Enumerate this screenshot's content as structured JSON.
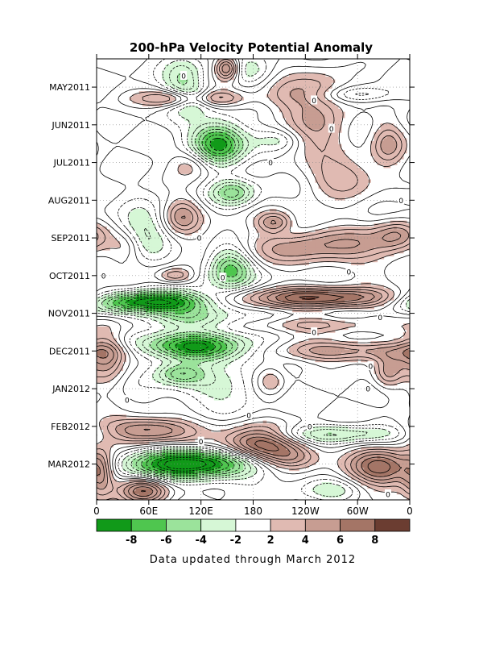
{
  "chart_data": {
    "type": "heatmap",
    "title": "200-hPa Velocity Potential Anomaly",
    "footer": "Data updated through March 2012",
    "xlabel": "",
    "ylabel": "",
    "x_ticks": [
      "0",
      "60E",
      "120E",
      "180",
      "120W",
      "60W",
      "0"
    ],
    "x_tick_lons": [
      0,
      60,
      120,
      180,
      240,
      300,
      360
    ],
    "xlim": [
      0,
      360
    ],
    "y_ticks": [
      "MAY2011",
      "JUN2011",
      "JUL2011",
      "AUG2011",
      "SEP2011",
      "OCT2011",
      "NOV2011",
      "DEC2011",
      "JAN2012",
      "FEB2012",
      "MAR2012"
    ],
    "y_tick_months": [
      1,
      2,
      3,
      4,
      5,
      6,
      7,
      8,
      9,
      10,
      11
    ],
    "ylim_months": [
      0.25,
      11.95
    ],
    "y_direction": "time increases downward",
    "grid": true,
    "contour_interval": 1,
    "zero_contour_label": "0",
    "colorbar": {
      "placement": "bottom",
      "bounds": [
        -10,
        -8,
        -6,
        -4,
        -2,
        2,
        4,
        6,
        8,
        10
      ],
      "tick_labels": [
        "-8",
        "-6",
        "-4",
        "-2",
        "2",
        "4",
        "6",
        "8"
      ],
      "tick_values": [
        -8,
        -6,
        -4,
        -2,
        2,
        4,
        6,
        8
      ],
      "colors": [
        "#119a19",
        "#4fc64f",
        "#9be39b",
        "#d6f7d6",
        "#ffffff",
        "#e0bab2",
        "#c79d92",
        "#a47566",
        "#6b3d31"
      ]
    },
    "features": [
      {
        "lon": 150,
        "month": 0.5,
        "value": 7,
        "dlon": 10,
        "dmonth": 0.22
      },
      {
        "lon": 100,
        "month": 0.9,
        "value": -4,
        "dlon": 16,
        "dmonth": 0.5
      },
      {
        "lon": 115,
        "month": 1.3,
        "value": -5,
        "dlon": 15,
        "dmonth": 0.2
      },
      {
        "lon": 175,
        "month": 0.6,
        "value": -2.5,
        "dlon": 18,
        "dmonth": 0.25
      },
      {
        "lon": 110,
        "month": 1.3,
        "value": 7,
        "dlon": 38,
        "dmonth": 0.16
      },
      {
        "lon": 218,
        "month": 1.2,
        "value": 3,
        "dlon": 25,
        "dmonth": 0.3
      },
      {
        "lon": 262,
        "month": 1.0,
        "value": 3,
        "dlon": 25,
        "dmonth": 0.35
      },
      {
        "lon": 300,
        "month": 1.2,
        "value": -3,
        "dlon": 30,
        "dmonth": 0.15
      },
      {
        "lon": 255,
        "month": 2.1,
        "value": 4,
        "dlon": 28,
        "dmonth": 0.5
      },
      {
        "lon": 335,
        "month": 2.5,
        "value": 4,
        "dlon": 14,
        "dmonth": 0.45
      },
      {
        "lon": 140,
        "month": 2.5,
        "value": -9,
        "dlon": 22,
        "dmonth": 0.4
      },
      {
        "lon": 210,
        "month": 2.4,
        "value": -2,
        "dlon": 18,
        "dmonth": 0.2
      },
      {
        "lon": 285,
        "month": 3.4,
        "value": 4,
        "dlon": 30,
        "dmonth": 0.35
      },
      {
        "lon": 110,
        "month": 3.0,
        "value": 3.5,
        "dlon": 18,
        "dmonth": 0.3
      },
      {
        "lon": 157,
        "month": 3.8,
        "value": -5,
        "dlon": 18,
        "dmonth": 0.25
      },
      {
        "lon": 98,
        "month": 4.4,
        "value": 4.5,
        "dlon": 16,
        "dmonth": 0.35
      },
      {
        "lon": 50,
        "month": 4.9,
        "value": -4,
        "dlon": 22,
        "dmonth": 0.45
      },
      {
        "lon": 215,
        "month": 4.8,
        "value": -2,
        "dlon": 20,
        "dmonth": 0.25
      },
      {
        "lon": 205,
        "month": 4.6,
        "value": 5,
        "dlon": 15,
        "dmonth": 0.2
      },
      {
        "lon": 258,
        "month": 5.2,
        "value": 5,
        "dlon": 70,
        "dmonth": 0.4
      },
      {
        "lon": 345,
        "month": 4.9,
        "value": 3.5,
        "dlon": 18,
        "dmonth": 0.3
      },
      {
        "lon": 153,
        "month": 5.8,
        "value": -7,
        "dlon": 18,
        "dmonth": 0.4
      },
      {
        "lon": 90,
        "month": 6.0,
        "value": 4,
        "dlon": 14,
        "dmonth": 0.15
      },
      {
        "lon": 35,
        "month": 5.2,
        "value": 3,
        "dlon": 14,
        "dmonth": 0.3
      },
      {
        "lon": 60,
        "month": 6.7,
        "value": -11,
        "dlon": 50,
        "dmonth": 0.2
      },
      {
        "lon": 265,
        "month": 6.6,
        "value": 8,
        "dlon": 75,
        "dmonth": 0.2
      },
      {
        "lon": 110,
        "month": 7.1,
        "value": -4,
        "dlon": 40,
        "dmonth": 0.2
      },
      {
        "lon": 245,
        "month": 7.3,
        "value": 3,
        "dlon": 60,
        "dmonth": 0.15
      },
      {
        "lon": 115,
        "month": 7.9,
        "value": -10,
        "dlon": 48,
        "dmonth": 0.25
      },
      {
        "lon": 12,
        "month": 8.1,
        "value": 4.5,
        "dlon": 16,
        "dmonth": 0.6
      },
      {
        "lon": 95,
        "month": 8.6,
        "value": -5,
        "dlon": 20,
        "dmonth": 0.2
      },
      {
        "lon": 290,
        "month": 8.0,
        "value": 5,
        "dlon": 80,
        "dmonth": 0.2
      },
      {
        "lon": 335,
        "month": 8.6,
        "value": 4,
        "dlon": 12,
        "dmonth": 0.3
      },
      {
        "lon": 200,
        "month": 8.8,
        "value": 3,
        "dlon": 12,
        "dmonth": 0.3
      },
      {
        "lon": 140,
        "month": 9.0,
        "value": -2.5,
        "dlon": 40,
        "dmonth": 0.35
      },
      {
        "lon": 58,
        "month": 10.1,
        "value": 7,
        "dlon": 38,
        "dmonth": 0.25
      },
      {
        "lon": 275,
        "month": 10.2,
        "value": -4,
        "dlon": 55,
        "dmonth": 0.17
      },
      {
        "lon": 185,
        "month": 10.5,
        "value": 8,
        "dlon": 30,
        "dmonth": 0.35
      },
      {
        "lon": 225,
        "month": 10.8,
        "value": 4,
        "dlon": 25,
        "dmonth": 0.25
      },
      {
        "lon": 330,
        "month": 11.1,
        "value": 8,
        "dlon": 30,
        "dmonth": 0.35
      },
      {
        "lon": 110,
        "month": 11.0,
        "value": -11,
        "dlon": 55,
        "dmonth": 0.28
      },
      {
        "lon": 55,
        "month": 11.7,
        "value": 6.5,
        "dlon": 20,
        "dmonth": 0.25
      },
      {
        "lon": 5,
        "month": 11.3,
        "value": 4,
        "dlon": 10,
        "dmonth": 0.5
      },
      {
        "lon": 270,
        "month": 11.7,
        "value": -2.5,
        "dlon": 25,
        "dmonth": 0.2
      }
    ]
  }
}
